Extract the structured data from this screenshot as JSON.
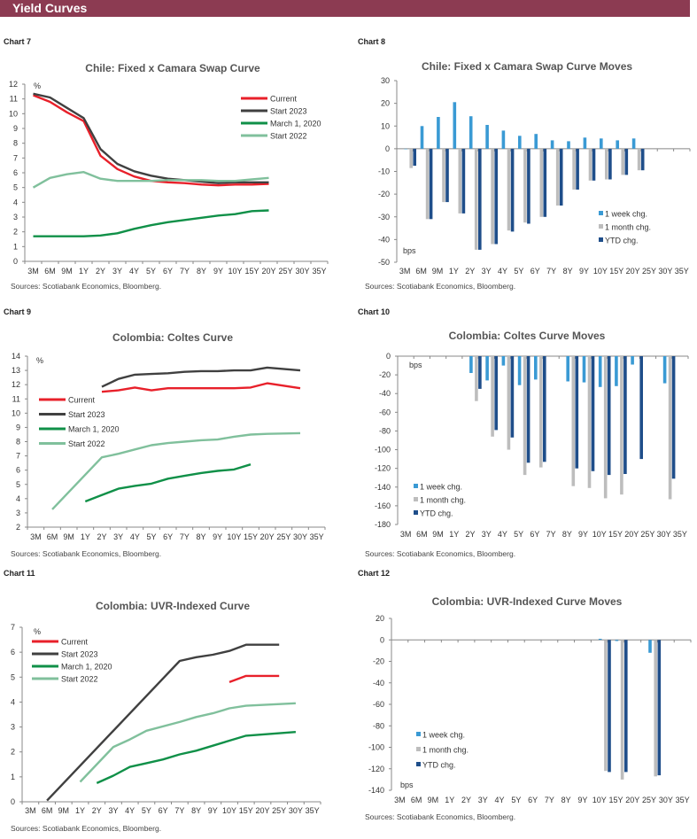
{
  "header": {
    "title": "Yield Curves"
  },
  "colors": {
    "header_bg": "#8c3b52",
    "current": "#e8202a",
    "start_2023": "#404040",
    "march_2020": "#109048",
    "start_2022": "#80c09c",
    "week": "#3a9ad4",
    "month": "#bdbdbd",
    "ytd": "#1f4e8a"
  },
  "chart_data": [
    {
      "label": "Chart 7",
      "type": "line",
      "title": "Chile:  Fixed x Camara Swap Curve",
      "unit": "%",
      "source": "Sources: Scotiabank Economics, Bloomberg.",
      "categories": [
        "3M",
        "6M",
        "9M",
        "1Y",
        "2Y",
        "3Y",
        "4Y",
        "5Y",
        "6Y",
        "7Y",
        "8Y",
        "9Y",
        "10Y",
        "15Y",
        "20Y",
        "25Y",
        "30Y",
        "35Y"
      ],
      "ylim": [
        0,
        12
      ],
      "ystep": 1,
      "legend": "top-right",
      "series": [
        {
          "name": "Current",
          "color": "#e8202a",
          "values": [
            11.25,
            10.8,
            10.1,
            9.5,
            7.15,
            6.25,
            5.75,
            5.45,
            5.35,
            5.3,
            5.2,
            5.15,
            5.2,
            5.2,
            5.25,
            null,
            null,
            null
          ]
        },
        {
          "name": "Start 2023",
          "color": "#404040",
          "values": [
            11.35,
            11.1,
            10.4,
            9.7,
            7.6,
            6.6,
            6.1,
            5.8,
            5.6,
            5.5,
            5.4,
            5.3,
            5.35,
            5.35,
            5.35,
            null,
            null,
            null
          ]
        },
        {
          "name": "March 1, 2020",
          "color": "#109048",
          "values": [
            1.7,
            1.7,
            1.7,
            1.7,
            1.75,
            1.9,
            2.2,
            2.45,
            2.65,
            2.8,
            2.95,
            3.1,
            3.2,
            3.4,
            3.45,
            null,
            null,
            null
          ]
        },
        {
          "name": "Start 2022",
          "color": "#80c09c",
          "values": [
            5.0,
            5.65,
            5.9,
            6.05,
            5.6,
            5.45,
            5.45,
            5.45,
            5.5,
            5.5,
            5.5,
            5.45,
            5.45,
            5.55,
            5.65,
            null,
            null,
            null
          ]
        }
      ]
    },
    {
      "label": "Chart 8",
      "type": "bar",
      "title": "Chile:  Fixed x Camara Swap Curve Moves",
      "unit": "bps",
      "source": "Sources: Scotiabank Economics, Bloomberg.",
      "categories": [
        "3M",
        "6M",
        "9M",
        "1Y",
        "2Y",
        "3Y",
        "4Y",
        "5Y",
        "6Y",
        "7Y",
        "8Y",
        "9Y",
        "10Y",
        "15Y",
        "20Y",
        "25Y",
        "30Y",
        "35Y"
      ],
      "ylim": [
        -50,
        30
      ],
      "ystep": 10,
      "legend": "bottom-right",
      "series": [
        {
          "name": "1 week chg.",
          "color": "#3a9ad4",
          "values": [
            0,
            10,
            14,
            20.5,
            14.3,
            10.5,
            8,
            5.7,
            6.5,
            3.7,
            3.3,
            4.9,
            4.5,
            3.7,
            4.5,
            null,
            null,
            null
          ]
        },
        {
          "name": "1 month chg.",
          "color": "#bdbdbd",
          "values": [
            -8.5,
            -31,
            -23.5,
            -28.5,
            -44.5,
            -42,
            -36,
            -32.5,
            -30,
            -25,
            -18,
            -14,
            -13.5,
            -11.5,
            -9.5,
            null,
            null,
            null
          ]
        },
        {
          "name": "YTD chg.",
          "color": "#1f4e8a",
          "values": [
            -7.5,
            -31,
            -23.5,
            -28.5,
            -44.5,
            -42,
            -36.5,
            -33,
            -30,
            -25,
            -18,
            -14,
            -13.5,
            -11.5,
            -9.5,
            null,
            null,
            null
          ]
        }
      ]
    },
    {
      "label": "Chart 9",
      "type": "line",
      "title": "Colombia:  Coltes Curve",
      "unit": "%",
      "source": "Sources: Scotiabank Economics, Bloomberg.",
      "categories": [
        "3M",
        "6M",
        "9M",
        "1Y",
        "2Y",
        "3Y",
        "4Y",
        "5Y",
        "6Y",
        "7Y",
        "8Y",
        "9Y",
        "10Y",
        "15Y",
        "20Y",
        "25Y",
        "30Y",
        "35Y"
      ],
      "ylim": [
        2,
        14
      ],
      "ystep": 1,
      "legend": "left",
      "series": [
        {
          "name": "Current",
          "color": "#e8202a",
          "values": [
            null,
            null,
            null,
            null,
            11.5,
            11.6,
            11.8,
            11.6,
            11.75,
            11.75,
            11.75,
            11.75,
            11.75,
            11.8,
            12.1,
            null,
            11.75,
            null
          ]
        },
        {
          "name": "Start 2023",
          "color": "#404040",
          "values": [
            null,
            null,
            null,
            null,
            11.85,
            12.4,
            12.7,
            12.75,
            12.8,
            12.9,
            12.95,
            12.95,
            13.0,
            13.0,
            13.2,
            null,
            13.0,
            null
          ]
        },
        {
          "name": "March 1, 2020",
          "color": "#109048",
          "values": [
            null,
            null,
            null,
            3.8,
            4.25,
            4.7,
            4.9,
            5.05,
            5.4,
            5.6,
            5.8,
            5.95,
            6.05,
            6.4,
            null,
            null,
            null,
            null
          ]
        },
        {
          "name": "Start 2022",
          "color": "#80c09c",
          "values": [
            null,
            3.25,
            null,
            null,
            6.9,
            7.15,
            7.45,
            7.75,
            7.9,
            8.0,
            8.1,
            8.15,
            8.35,
            8.5,
            8.55,
            null,
            8.6,
            null
          ]
        }
      ]
    },
    {
      "label": "Chart 10",
      "type": "bar",
      "title": "Colombia:  Coltes Curve Moves",
      "unit": "bps",
      "source": "Sources: Scotiabank Economics, Bloomberg.",
      "categories": [
        "3M",
        "6M",
        "9M",
        "1Y",
        "2Y",
        "3Y",
        "4Y",
        "5Y",
        "6Y",
        "7Y",
        "8Y",
        "9Y",
        "10Y",
        "15Y",
        "20Y",
        "25Y",
        "30Y",
        "35Y"
      ],
      "ylim": [
        -180,
        0
      ],
      "ystep": 20,
      "legend": "bottom-left",
      "series": [
        {
          "name": "1 week chg.",
          "color": "#3a9ad4",
          "values": [
            null,
            null,
            null,
            null,
            -18,
            -26,
            -10,
            -31,
            -25,
            null,
            -27,
            -28,
            -33,
            -32,
            -9,
            null,
            -29,
            null
          ]
        },
        {
          "name": "1 month chg.",
          "color": "#bdbdbd",
          "values": [
            null,
            null,
            null,
            null,
            -48,
            -86,
            -100,
            -127,
            -119,
            null,
            -139,
            -141,
            -152,
            -148,
            null,
            null,
            -153,
            null
          ]
        },
        {
          "name": "YTD chg.",
          "color": "#1f4e8a",
          "values": [
            null,
            null,
            null,
            null,
            -35,
            -79,
            -87,
            -114,
            -113,
            null,
            -120,
            -123,
            -127,
            -126,
            -110,
            null,
            -131,
            null
          ]
        }
      ]
    },
    {
      "label": "Chart 11",
      "type": "line",
      "title": "Colombia:  UVR-Indexed  Curve",
      "unit": "%",
      "source": "Sources: Scotiabank Economics, Bloomberg.",
      "categories": [
        "3M",
        "6M",
        "9M",
        "1Y",
        "2Y",
        "3Y",
        "4Y",
        "5Y",
        "6Y",
        "7Y",
        "8Y",
        "9Y",
        "10Y",
        "15Y",
        "20Y",
        "25Y",
        "30Y",
        "35Y"
      ],
      "ylim": [
        0,
        7
      ],
      "ystep": 1,
      "legend": "top-left",
      "series": [
        {
          "name": "Current",
          "color": "#e8202a",
          "values": [
            null,
            null,
            null,
            null,
            null,
            null,
            null,
            null,
            null,
            null,
            null,
            null,
            4.8,
            5.05,
            null,
            5.05,
            null,
            null
          ]
        },
        {
          "name": "Start 2023",
          "color": "#404040",
          "values": [
            null,
            0.05,
            null,
            null,
            null,
            null,
            null,
            null,
            null,
            5.65,
            5.8,
            5.9,
            6.05,
            6.3,
            null,
            6.3,
            null,
            null
          ]
        },
        {
          "name": "March 1, 2020",
          "color": "#109048",
          "values": [
            null,
            null,
            null,
            null,
            0.75,
            1.05,
            1.4,
            1.55,
            1.7,
            1.9,
            2.05,
            2.25,
            2.45,
            2.65,
            null,
            null,
            2.8,
            null
          ]
        },
        {
          "name": "Start 2022",
          "color": "#80c09c",
          "values": [
            null,
            null,
            null,
            0.8,
            null,
            2.2,
            2.5,
            2.85,
            null,
            3.2,
            3.4,
            3.55,
            3.75,
            3.85,
            null,
            null,
            3.95,
            null
          ]
        }
      ]
    },
    {
      "label": "Chart 12",
      "type": "bar",
      "title": "Colombia:  UVR-Indexed Curve Moves",
      "unit": "bps",
      "source": "Sources: Scotiabank Economics, Bloomberg.",
      "categories": [
        "3M",
        "6M",
        "9M",
        "1Y",
        "2Y",
        "3Y",
        "4Y",
        "5Y",
        "6Y",
        "7Y",
        "8Y",
        "9Y",
        "10Y",
        "15Y",
        "20Y",
        "25Y",
        "30Y",
        "35Y"
      ],
      "ylim": [
        -140,
        20
      ],
      "ystep": 20,
      "legend": "bottom-left",
      "series": [
        {
          "name": "1 week chg.",
          "color": "#3a9ad4",
          "values": [
            null,
            null,
            null,
            null,
            null,
            null,
            null,
            null,
            null,
            null,
            null,
            null,
            1,
            -1,
            null,
            -12,
            null,
            null
          ]
        },
        {
          "name": "1 month chg.",
          "color": "#bdbdbd",
          "values": [
            null,
            null,
            null,
            null,
            null,
            null,
            null,
            null,
            null,
            null,
            null,
            null,
            -122,
            -130,
            null,
            -127,
            null,
            null
          ]
        },
        {
          "name": "YTD chg.",
          "color": "#1f4e8a",
          "values": [
            null,
            null,
            null,
            null,
            null,
            null,
            null,
            null,
            null,
            null,
            null,
            null,
            -123,
            -123,
            null,
            -126,
            null,
            null
          ]
        }
      ]
    }
  ]
}
